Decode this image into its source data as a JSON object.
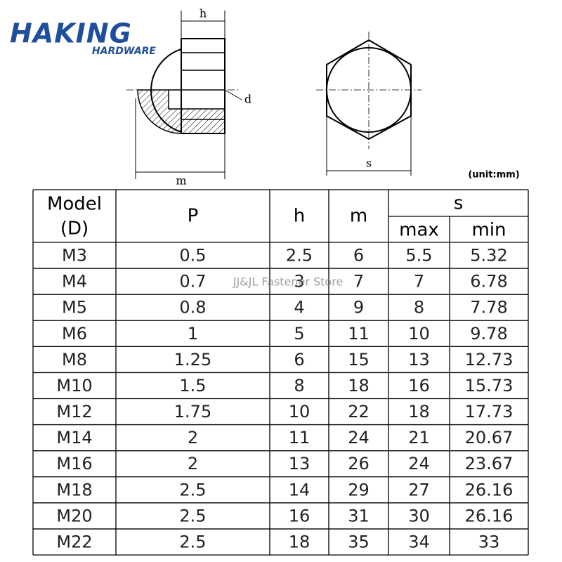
{
  "logo": {
    "brand": "HAKING",
    "sub": "HARDWARE"
  },
  "diagram": {
    "h": "h",
    "d": "d",
    "m": "m",
    "s": "s",
    "unit": "(unit:mm)"
  },
  "watermark": "JJ&JL Fastener Store",
  "table": {
    "headers": {
      "model": [
        "Model",
        "(D)"
      ],
      "p": "P",
      "h": "h",
      "m": "m",
      "s": "s",
      "max": "max",
      "min": "min"
    },
    "rows": [
      [
        "M3",
        "0.5",
        "2.5",
        "6",
        "5.5",
        "5.32"
      ],
      [
        "M4",
        "0.7",
        "3",
        "7",
        "7",
        "6.78"
      ],
      [
        "M5",
        "0.8",
        "4",
        "9",
        "8",
        "7.78"
      ],
      [
        "M6",
        "1",
        "5",
        "11",
        "10",
        "9.78"
      ],
      [
        "M8",
        "1.25",
        "6",
        "15",
        "13",
        "12.73"
      ],
      [
        "M10",
        "1.5",
        "8",
        "18",
        "16",
        "15.73"
      ],
      [
        "M12",
        "1.75",
        "10",
        "22",
        "18",
        "17.73"
      ],
      [
        "M14",
        "2",
        "11",
        "24",
        "21",
        "20.67"
      ],
      [
        "M16",
        "2",
        "13",
        "26",
        "24",
        "23.67"
      ],
      [
        "M18",
        "2.5",
        "14",
        "29",
        "27",
        "26.16"
      ],
      [
        "M20",
        "2.5",
        "16",
        "31",
        "30",
        "26.16"
      ],
      [
        "M22",
        "2.5",
        "18",
        "35",
        "34",
        "33"
      ]
    ]
  }
}
